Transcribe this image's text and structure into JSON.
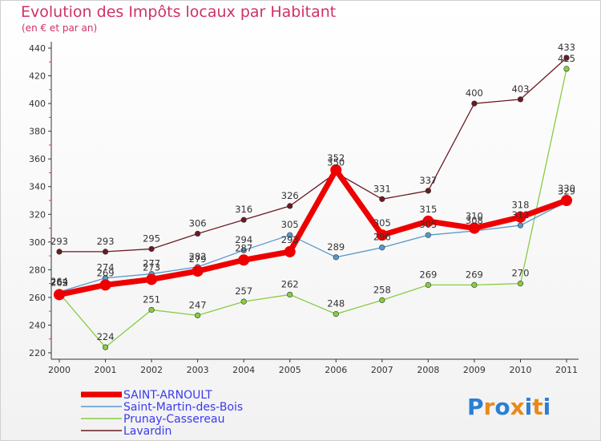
{
  "chart_data": {
    "type": "line",
    "title": "Evolution des Impôts locaux par Habitant",
    "subtitle": "(en € et par an)",
    "xlabel": "",
    "ylabel": "",
    "x": [
      "2000",
      "2001",
      "2002",
      "2003",
      "2004",
      "2005",
      "2006",
      "2007",
      "2008",
      "2009",
      "2010",
      "2011"
    ],
    "ylim": [
      220,
      440
    ],
    "yticks": [
      220,
      240,
      260,
      280,
      300,
      320,
      340,
      360,
      380,
      400,
      420,
      440
    ],
    "grid": false,
    "legend_position": "bottom-left",
    "series": [
      {
        "name": "SAINT-ARNOULT",
        "color": "#ee0000",
        "values": [
          262,
          269,
          273,
          279,
          287,
          293,
          352,
          305,
          315,
          310,
          318,
          330
        ]
      },
      {
        "name": "Saint-Martin-des-Bois",
        "color": "#5599cc",
        "values": [
          264,
          274,
          277,
          282,
          294,
          305,
          289,
          296,
          305,
          308,
          312,
          329
        ]
      },
      {
        "name": "Prunay-Cassereau",
        "color": "#88cc44",
        "values": [
          263,
          224,
          251,
          247,
          257,
          262,
          248,
          258,
          269,
          269,
          270,
          425
        ]
      },
      {
        "name": "Lavardin",
        "color": "#6b1a22",
        "values": [
          293,
          293,
          295,
          306,
          316,
          326,
          350,
          331,
          337,
          400,
          403,
          433
        ]
      }
    ]
  },
  "logo": {
    "text": "Proxiti",
    "letter_colors": [
      "#2a7fd4",
      "#e88a1a",
      "#2a7fd4",
      "#e88a1a",
      "#2a7fd4",
      "#e88a1a",
      "#2a7fd4"
    ]
  }
}
